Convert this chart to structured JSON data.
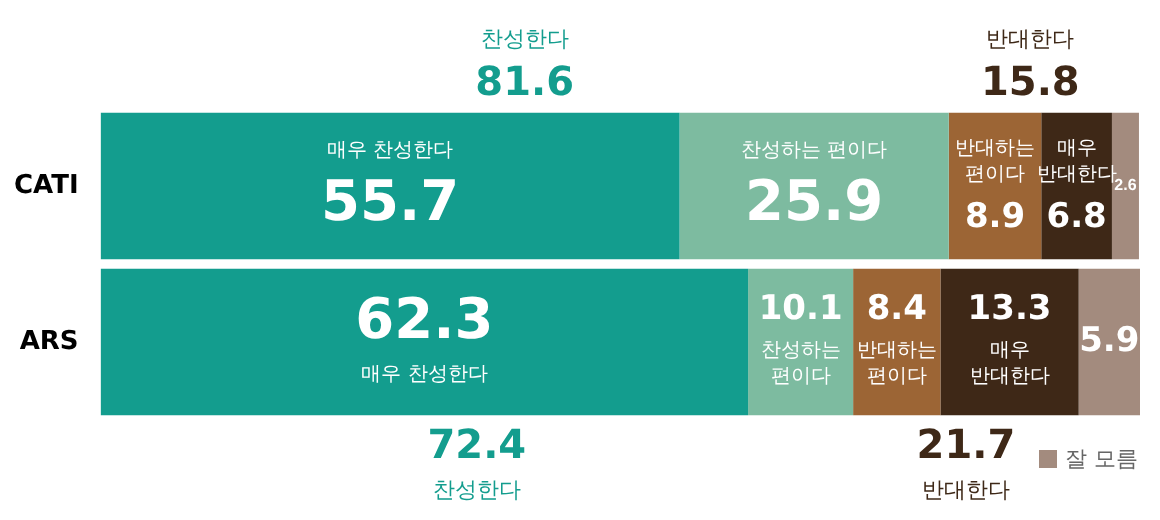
{
  "chart_data": {
    "type": "bar",
    "orientation": "horizontal",
    "stacked": true,
    "data_labels": true,
    "legend": "bottom right",
    "grid": false,
    "categories": [
      "CATI",
      "ARS"
    ],
    "series": [
      {
        "name": "매우 찬성한다",
        "color": "#139d8e",
        "values": [
          55.7,
          62.3
        ]
      },
      {
        "name": "찬성하는 편이다",
        "color": "#7dbba0",
        "values": [
          25.9,
          10.1
        ]
      },
      {
        "name": "반대하는 편이다",
        "color": "#9c6535",
        "values": [
          8.9,
          8.4
        ]
      },
      {
        "name": "매우 반대한다",
        "color": "#3e2817",
        "values": [
          6.8,
          13.3
        ]
      },
      {
        "name": "잘 모름",
        "color": "#a38b7e",
        "values": [
          2.6,
          5.9
        ]
      }
    ],
    "annotations": [
      "찬성한다",
      "81.6",
      "반대한다",
      "15.8",
      "72.4",
      "찬성한다",
      "21.7",
      "반대한다"
    ]
  }
}
